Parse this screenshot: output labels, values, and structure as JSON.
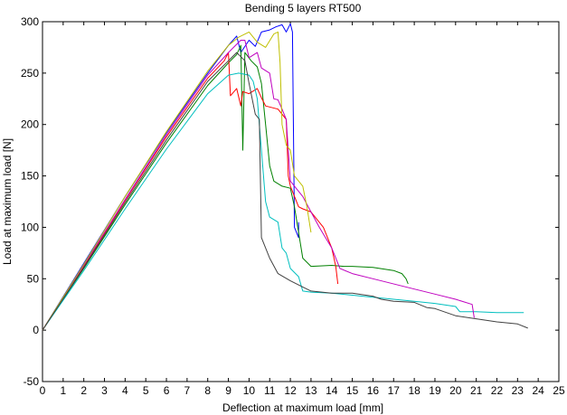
{
  "chart_data": {
    "type": "line",
    "title": "Bending 5 layers RT500",
    "xlabel": "Deflection at maximum load [mm]",
    "ylabel": "Load at maximum load [N]",
    "xlim": [
      0,
      25
    ],
    "ylim": [
      -50,
      300
    ],
    "xticks": [
      0,
      1,
      2,
      3,
      4,
      5,
      6,
      7,
      8,
      9,
      10,
      11,
      12,
      13,
      14,
      15,
      16,
      17,
      18,
      19,
      20,
      21,
      22,
      23,
      24,
      25
    ],
    "yticks": [
      -50,
      0,
      50,
      100,
      150,
      200,
      250,
      300
    ],
    "grid": false,
    "series": [
      {
        "color": "#0000ff",
        "points": [
          [
            0,
            0
          ],
          [
            2,
            65
          ],
          [
            4,
            130
          ],
          [
            6,
            192
          ],
          [
            8,
            250
          ],
          [
            9,
            277
          ],
          [
            9.4,
            286
          ],
          [
            9.6,
            270
          ],
          [
            10,
            282
          ],
          [
            10.3,
            276
          ],
          [
            10.6,
            290
          ],
          [
            11,
            292
          ],
          [
            11.3,
            295
          ],
          [
            11.6,
            297
          ],
          [
            11.8,
            290
          ],
          [
            12.0,
            298
          ],
          [
            12.1,
            290
          ],
          [
            12.2,
            100
          ],
          [
            12.4,
            90
          ],
          [
            12.4,
            105
          ]
        ]
      },
      {
        "color": "#008000",
        "points": [
          [
            0,
            0
          ],
          [
            2,
            60
          ],
          [
            4,
            122
          ],
          [
            6,
            182
          ],
          [
            8,
            238
          ],
          [
            9,
            260
          ],
          [
            9.4,
            268
          ],
          [
            9.6,
            277
          ],
          [
            9.7,
            175
          ],
          [
            9.8,
            270
          ],
          [
            10.1,
            262
          ],
          [
            10.4,
            256
          ],
          [
            10.6,
            240
          ],
          [
            10.8,
            200
          ],
          [
            11.0,
            160
          ],
          [
            11.2,
            145
          ],
          [
            11.6,
            140
          ],
          [
            12,
            138
          ],
          [
            12.2,
            120
          ],
          [
            12.6,
            70
          ],
          [
            13,
            62
          ],
          [
            14,
            63
          ],
          [
            14.6,
            62
          ],
          [
            15,
            62
          ],
          [
            16,
            61
          ],
          [
            17,
            58
          ],
          [
            17.4,
            55
          ],
          [
            17.6,
            50
          ],
          [
            17.7,
            45
          ]
        ]
      },
      {
        "color": "#ff0000",
        "points": [
          [
            0,
            0
          ],
          [
            2,
            62
          ],
          [
            4,
            126
          ],
          [
            6,
            188
          ],
          [
            8,
            245
          ],
          [
            8.8,
            262
          ],
          [
            9.0,
            270
          ],
          [
            9.1,
            228
          ],
          [
            9.4,
            235
          ],
          [
            9.6,
            218
          ],
          [
            9.7,
            232
          ],
          [
            10,
            230
          ],
          [
            10.4,
            235
          ],
          [
            10.6,
            226
          ],
          [
            10.8,
            218
          ],
          [
            11.4,
            215
          ],
          [
            11.8,
            205
          ],
          [
            11.9,
            150
          ],
          [
            12,
            140
          ],
          [
            12.4,
            120
          ],
          [
            12.6,
            118
          ],
          [
            13.0,
            115
          ],
          [
            13.6,
            100
          ],
          [
            14.0,
            80
          ],
          [
            14.2,
            62
          ],
          [
            14.3,
            45
          ]
        ]
      },
      {
        "color": "#00bfbf",
        "points": [
          [
            0,
            0
          ],
          [
            2,
            58
          ],
          [
            4,
            118
          ],
          [
            6,
            176
          ],
          [
            8,
            230
          ],
          [
            9,
            248
          ],
          [
            9.5,
            250
          ],
          [
            10,
            248
          ],
          [
            10.2,
            242
          ],
          [
            10.4,
            225
          ],
          [
            10.8,
            125
          ],
          [
            11.0,
            110
          ],
          [
            11.4,
            105
          ],
          [
            11.6,
            80
          ],
          [
            11.8,
            75
          ],
          [
            12,
            60
          ],
          [
            12.4,
            52
          ],
          [
            12.6,
            38
          ],
          [
            13,
            37
          ],
          [
            14,
            36
          ],
          [
            16,
            32
          ],
          [
            18,
            28
          ],
          [
            19,
            26
          ],
          [
            20,
            23
          ],
          [
            20.2,
            18
          ],
          [
            21,
            18
          ],
          [
            22,
            17
          ],
          [
            23.3,
            17
          ]
        ]
      },
      {
        "color": "#bf00bf",
        "points": [
          [
            0,
            0
          ],
          [
            2,
            63
          ],
          [
            4,
            127
          ],
          [
            6,
            190
          ],
          [
            8,
            248
          ],
          [
            9,
            270
          ],
          [
            9.4,
            278
          ],
          [
            9.6,
            282
          ],
          [
            9.8,
            282
          ],
          [
            10.0,
            265
          ],
          [
            10.4,
            270
          ],
          [
            10.6,
            255
          ],
          [
            11,
            250
          ],
          [
            11.2,
            225
          ],
          [
            11.4,
            224
          ],
          [
            11.6,
            215
          ],
          [
            11.8,
            205
          ],
          [
            12.0,
            145
          ],
          [
            12.2,
            140
          ],
          [
            12.6,
            130
          ],
          [
            13.0,
            115
          ],
          [
            13.4,
            100
          ],
          [
            14,
            80
          ],
          [
            14.4,
            60
          ],
          [
            15,
            55
          ],
          [
            16,
            50
          ],
          [
            18,
            40
          ],
          [
            19,
            35
          ],
          [
            20,
            30
          ],
          [
            20.8,
            25
          ],
          [
            20.9,
            12
          ]
        ]
      },
      {
        "color": "#bfbf00",
        "points": [
          [
            0,
            0
          ],
          [
            2,
            64
          ],
          [
            4,
            130
          ],
          [
            6,
            193
          ],
          [
            8,
            252
          ],
          [
            9,
            277
          ],
          [
            9.5,
            285
          ],
          [
            10.0,
            290
          ],
          [
            10.2,
            285
          ],
          [
            10.4,
            280
          ],
          [
            10.8,
            275
          ],
          [
            11.2,
            288
          ],
          [
            11.4,
            290
          ],
          [
            11.5,
            260
          ],
          [
            11.6,
            200
          ],
          [
            11.8,
            180
          ],
          [
            12,
            175
          ],
          [
            12.2,
            150
          ],
          [
            12.6,
            140
          ],
          [
            12.8,
            120
          ],
          [
            13.0,
            95
          ]
        ]
      },
      {
        "color": "#404040",
        "points": [
          [
            0,
            0
          ],
          [
            2,
            61
          ],
          [
            4,
            124
          ],
          [
            6,
            185
          ],
          [
            8,
            242
          ],
          [
            9,
            262
          ],
          [
            9.4,
            270
          ],
          [
            9.6,
            266
          ],
          [
            9.8,
            262
          ],
          [
            10.0,
            240
          ],
          [
            10.3,
            210
          ],
          [
            10.5,
            205
          ],
          [
            10.6,
            90
          ],
          [
            11,
            70
          ],
          [
            11.4,
            55
          ],
          [
            12,
            48
          ],
          [
            12.6,
            42
          ],
          [
            13,
            38
          ],
          [
            14,
            36
          ],
          [
            15,
            36
          ],
          [
            16,
            33
          ],
          [
            16.4,
            30
          ],
          [
            17,
            28
          ],
          [
            18,
            27
          ],
          [
            18.6,
            22
          ],
          [
            19,
            21
          ],
          [
            20,
            14
          ],
          [
            21,
            11
          ],
          [
            22,
            8
          ],
          [
            23,
            6
          ],
          [
            23.5,
            2
          ]
        ]
      }
    ]
  }
}
